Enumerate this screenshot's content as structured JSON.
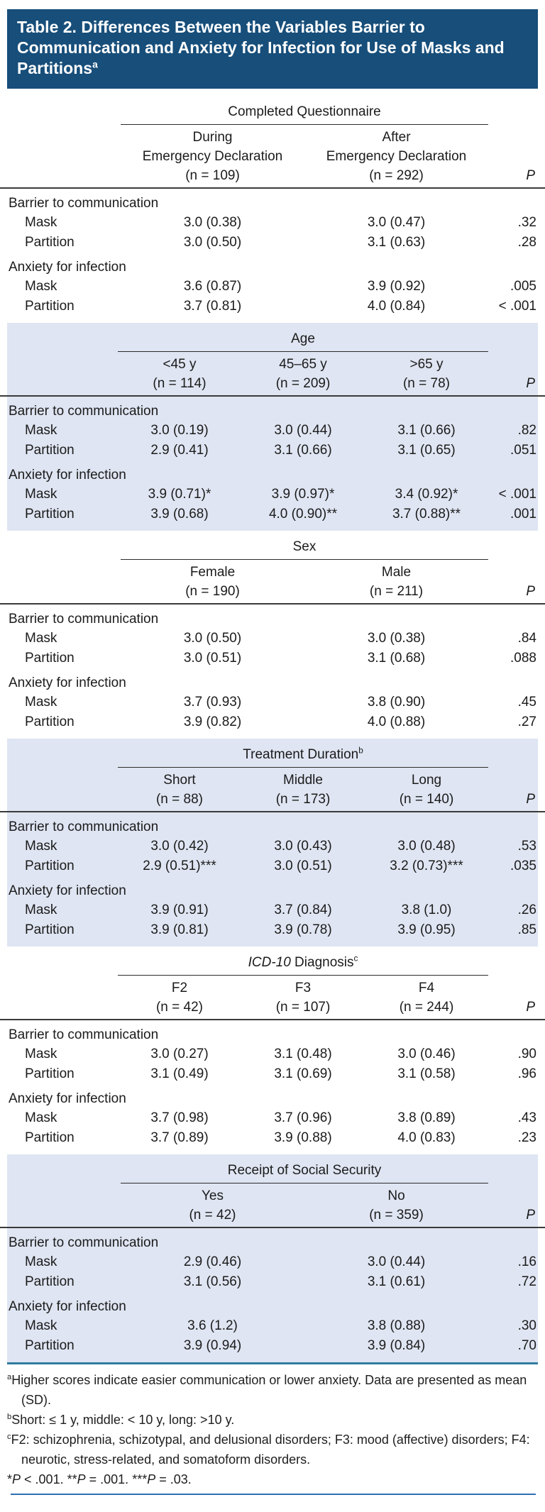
{
  "title": {
    "text": "Table 2. Differences Between the Variables Barrier to Communication and Anxiety for Infection for Use of Masks and Partitions",
    "sup": "a"
  },
  "sections": [
    {
      "spanner_italic": "",
      "spanner_text": "Completed Questionnaire",
      "spanner_sup": "",
      "p_label": "P",
      "columns": [
        {
          "label_lines": [
            "During",
            "Emergency Declaration"
          ],
          "n": "(n = 109)"
        },
        {
          "label_lines": [
            "After",
            "Emergency Declaration"
          ],
          "n": "(n = 292)"
        }
      ],
      "groups": [
        {
          "label": "Barrier to communication",
          "rows": [
            {
              "label": "Mask",
              "values": [
                "3.0 (0.38)",
                "3.0 (0.47)"
              ],
              "p": ".32"
            },
            {
              "label": "Partition",
              "values": [
                "3.0 (0.50)",
                "3.1 (0.63)"
              ],
              "p": ".28"
            }
          ]
        },
        {
          "label": "Anxiety for infection",
          "rows": [
            {
              "label": "Mask",
              "values": [
                "3.6 (0.87)",
                "3.9 (0.92)"
              ],
              "p": ".005"
            },
            {
              "label": "Partition",
              "values": [
                "3.7 (0.81)",
                "4.0 (0.84)"
              ],
              "p": "< .001"
            }
          ]
        }
      ]
    },
    {
      "spanner_italic": "",
      "spanner_text": "Age",
      "spanner_sup": "",
      "p_label": "P",
      "columns": [
        {
          "label_lines": [
            "<45 y"
          ],
          "n": "(n = 114)"
        },
        {
          "label_lines": [
            "45–65 y"
          ],
          "n": "(n = 209)"
        },
        {
          "label_lines": [
            ">65 y"
          ],
          "n": "(n = 78)"
        }
      ],
      "groups": [
        {
          "label": "Barrier to communication",
          "rows": [
            {
              "label": "Mask",
              "values": [
                "3.0 (0.19)",
                "3.0 (0.44)",
                "3.1 (0.66)"
              ],
              "p": ".82"
            },
            {
              "label": "Partition",
              "values": [
                "2.9 (0.41)",
                "3.1 (0.66)",
                "3.1 (0.65)"
              ],
              "p": ".051"
            }
          ]
        },
        {
          "label": "Anxiety for infection",
          "rows": [
            {
              "label": "Mask",
              "values": [
                "3.9 (0.71)*",
                "3.9 (0.97)*",
                "3.4 (0.92)*"
              ],
              "p": "< .001"
            },
            {
              "label": "Partition",
              "values": [
                "3.9 (0.68)",
                "4.0 (0.90)**",
                "3.7 (0.88)**"
              ],
              "p": ".001"
            }
          ]
        }
      ]
    },
    {
      "spanner_italic": "",
      "spanner_text": "Sex",
      "spanner_sup": "",
      "p_label": "P",
      "columns": [
        {
          "label_lines": [
            "Female"
          ],
          "n": "(n = 190)"
        },
        {
          "label_lines": [
            "Male"
          ],
          "n": "(n = 211)"
        }
      ],
      "groups": [
        {
          "label": "Barrier to communication",
          "rows": [
            {
              "label": "Mask",
              "values": [
                "3.0 (0.50)",
                "3.0 (0.38)"
              ],
              "p": ".84"
            },
            {
              "label": "Partition",
              "values": [
                "3.0 (0.51)",
                "3.1 (0.68)"
              ],
              "p": ".088"
            }
          ]
        },
        {
          "label": "Anxiety for infection",
          "rows": [
            {
              "label": "Mask",
              "values": [
                "3.7 (0.93)",
                "3.8 (0.90)"
              ],
              "p": ".45"
            },
            {
              "label": "Partition",
              "values": [
                "3.9 (0.82)",
                "4.0 (0.88)"
              ],
              "p": ".27"
            }
          ]
        }
      ]
    },
    {
      "spanner_italic": "",
      "spanner_text": "Treatment Duration",
      "spanner_sup": "b",
      "p_label": "P",
      "columns": [
        {
          "label_lines": [
            "Short"
          ],
          "n": "(n = 88)"
        },
        {
          "label_lines": [
            "Middle"
          ],
          "n": "(n = 173)"
        },
        {
          "label_lines": [
            "Long"
          ],
          "n": "(n = 140)"
        }
      ],
      "groups": [
        {
          "label": "Barrier to communication",
          "rows": [
            {
              "label": "Mask",
              "values": [
                "3.0 (0.42)",
                "3.0 (0.43)",
                "3.0 (0.48)"
              ],
              "p": ".53"
            },
            {
              "label": "Partition",
              "values": [
                "2.9 (0.51)***",
                "3.0 (0.51)",
                "3.2 (0.73)***"
              ],
              "p": ".035"
            }
          ]
        },
        {
          "label": "Anxiety for infection",
          "rows": [
            {
              "label": "Mask",
              "values": [
                "3.9 (0.91)",
                "3.7 (0.84)",
                "3.8 (1.0)"
              ],
              "p": ".26"
            },
            {
              "label": "Partition",
              "values": [
                "3.9 (0.81)",
                "3.9 (0.78)",
                "3.9 (0.95)"
              ],
              "p": ".85"
            }
          ]
        }
      ]
    },
    {
      "spanner_italic": "ICD-10",
      "spanner_text": " Diagnosis",
      "spanner_sup": "c",
      "p_label": "P",
      "columns": [
        {
          "label_lines": [
            "F2"
          ],
          "n": "(n = 42)"
        },
        {
          "label_lines": [
            "F3"
          ],
          "n": "(n = 107)"
        },
        {
          "label_lines": [
            "F4"
          ],
          "n": "(n = 244)"
        }
      ],
      "groups": [
        {
          "label": "Barrier to communication",
          "rows": [
            {
              "label": "Mask",
              "values": [
                "3.0 (0.27)",
                "3.1 (0.48)",
                "3.0 (0.46)"
              ],
              "p": ".90"
            },
            {
              "label": "Partition",
              "values": [
                "3.1 (0.49)",
                "3.1 (0.69)",
                "3.1 (0.58)"
              ],
              "p": ".96"
            }
          ]
        },
        {
          "label": "Anxiety for infection",
          "rows": [
            {
              "label": "Mask",
              "values": [
                "3.7 (0.98)",
                "3.7 (0.96)",
                "3.8 (0.89)"
              ],
              "p": ".43"
            },
            {
              "label": "Partition",
              "values": [
                "3.7 (0.89)",
                "3.9 (0.88)",
                "4.0 (0.83)"
              ],
              "p": ".23"
            }
          ]
        }
      ]
    },
    {
      "spanner_italic": "",
      "spanner_text": "Receipt of Social Security",
      "spanner_sup": "",
      "p_label": "P",
      "columns": [
        {
          "label_lines": [
            "Yes"
          ],
          "n": "(n = 42)"
        },
        {
          "label_lines": [
            "No"
          ],
          "n": "(n = 359)"
        }
      ],
      "groups": [
        {
          "label": "Barrier to communication",
          "rows": [
            {
              "label": "Mask",
              "values": [
                "2.9 (0.46)",
                "3.0 (0.44)"
              ],
              "p": ".16"
            },
            {
              "label": "Partition",
              "values": [
                "3.1 (0.56)",
                "3.1 (0.61)"
              ],
              "p": ".72"
            }
          ]
        },
        {
          "label": "Anxiety for infection",
          "rows": [
            {
              "label": "Mask",
              "values": [
                "3.6 (1.2)",
                "3.8 (0.88)"
              ],
              "p": ".30"
            },
            {
              "label": "Partition",
              "values": [
                "3.9 (0.94)",
                "3.9 (0.84)"
              ],
              "p": ".70"
            }
          ]
        }
      ]
    }
  ],
  "footnotes": [
    {
      "marker": "a",
      "text": "Higher scores indicate easier communication or lower anxiety. Data are presented as mean (SD)."
    },
    {
      "marker": "b",
      "text": "Short: ≤ 1 y, middle: < 10 y, long: >10 y."
    },
    {
      "marker": "c",
      "text": "F2: schizophrenia, schizotypal, and delusional disorders; F3: mood (affective) disorders; F4: neurotic, stress-related, and somatoform disorders."
    }
  ],
  "significance_note": {
    "star1": "*",
    "p": "P",
    "cmp1": " < .001. ",
    "star2": "**",
    "cmp2": " = .001. ",
    "star3": "***",
    "cmp3": " = .03."
  },
  "colors": {
    "title_bg": "#174e7a",
    "shaded_section_bg": "#dfe5f2",
    "teal_rule": "#2e7d9e",
    "bottom_rule": "#2f6eb3"
  }
}
